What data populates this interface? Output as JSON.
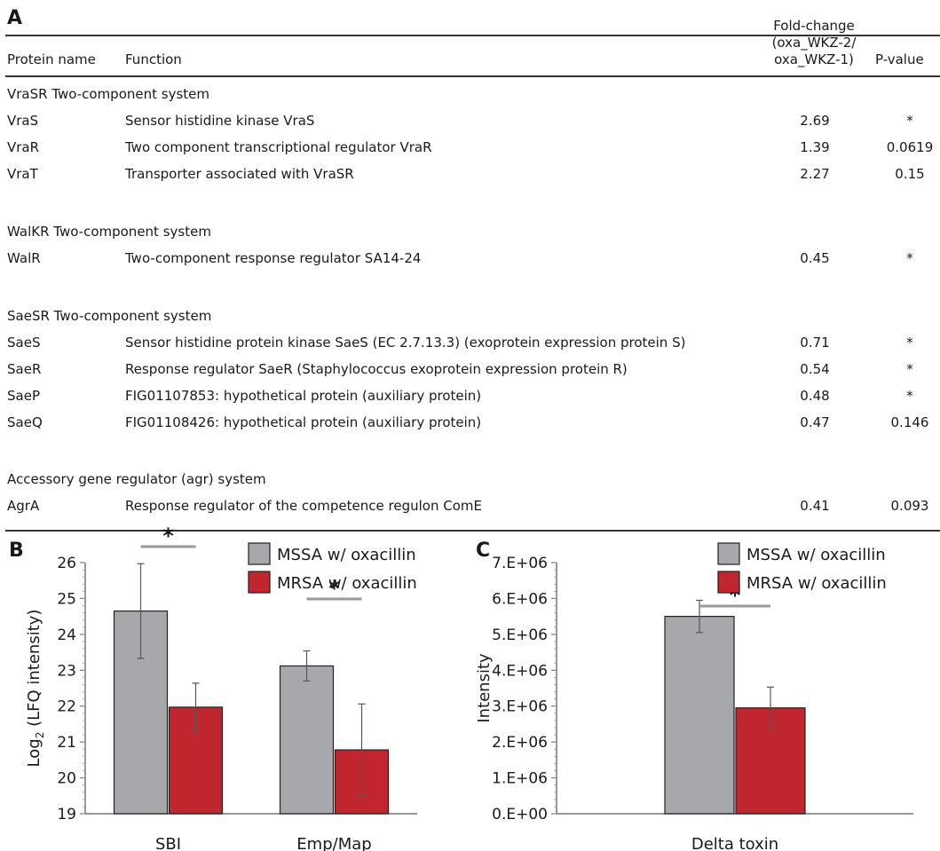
{
  "panels": {
    "a_label": "A",
    "b_label": "B",
    "c_label": "C"
  },
  "table": {
    "headers": {
      "protein": "Protein name",
      "function": "Function",
      "fold_line1": "Fold-change",
      "fold_line2": "(oxa_WKZ-2/",
      "fold_line3": "oxa_WKZ-1)",
      "pvalue": "P-value"
    },
    "groups": [
      {
        "title": "VraSR Two-component system",
        "rows": [
          {
            "protein": "VraS",
            "function": "Sensor histidine kinase VraS",
            "fold": "2.69",
            "p": "*"
          },
          {
            "protein": "VraR",
            "function": "Two component transcriptional regulator VraR",
            "fold": "1.39",
            "p": "0.0619"
          },
          {
            "protein": "VraT",
            "function": "Transporter associated with VraSR",
            "fold": "2.27",
            "p": "0.15"
          }
        ]
      },
      {
        "title": "WalKR Two-component system",
        "rows": [
          {
            "protein": "WalR",
            "function": "Two-component response regulator SA14-24",
            "fold": "0.45",
            "p": "*"
          }
        ]
      },
      {
        "title": "SaeSR Two-component system",
        "rows": [
          {
            "protein": "SaeS",
            "function": "Sensor histidine protein kinase SaeS (EC 2.7.13.3) (exoprotein expression protein S)",
            "fold": "0.71",
            "p": "*"
          },
          {
            "protein": "SaeR",
            "function": "Response regulator SaeR (Staphylococcus exoprotein expression protein R)",
            "fold": "0.54",
            "p": "*"
          },
          {
            "protein": "SaeP",
            "function": "FIG01107853: hypothetical protein (auxiliary protein)",
            "fold": "0.48",
            "p": "*"
          },
          {
            "protein": "SaeQ",
            "function": "FIG01108426: hypothetical protein (auxiliary protein)",
            "fold": "0.47",
            "p": "0.146"
          }
        ]
      },
      {
        "title": "Accessory gene regulator (agr)  system",
        "rows": [
          {
            "protein": "AgrA",
            "function": "Response regulator of the competence regulon ComE",
            "fold": "0.41",
            "p": "0.093"
          }
        ]
      }
    ]
  },
  "chart_data": [
    {
      "type": "bar",
      "panel": "B",
      "categories": [
        "SBI",
        "Emp/Map"
      ],
      "series": [
        {
          "name": "MSSA w/ oxacillin",
          "color": "#a6a8ab",
          "values": [
            24.65,
            23.12
          ],
          "errors": [
            1.32,
            0.42
          ]
        },
        {
          "name": "MRSA w/ oxacillin",
          "color": "#c0262d",
          "values": [
            21.97,
            20.78
          ],
          "errors": [
            0.67,
            1.28
          ]
        }
      ],
      "ylabel_base": "Log",
      "ylabel_sub": "2",
      "ylabel_rest": " (LFQ intensity)",
      "ylim": [
        19,
        26
      ],
      "yticks": [
        "19",
        "20",
        "21",
        "22",
        "23",
        "24",
        "25",
        "26"
      ],
      "significance": [
        {
          "category_index": 0,
          "mark": "*"
        },
        {
          "category_index": 1,
          "mark": "*"
        }
      ],
      "legend_position": "top-right",
      "grid": false
    },
    {
      "type": "bar",
      "panel": "C",
      "categories": [
        "Delta toxin"
      ],
      "series": [
        {
          "name": "MSSA w/ oxacillin",
          "color": "#a6a8ab",
          "values": [
            5500000
          ],
          "errors": [
            450000
          ]
        },
        {
          "name": "MRSA w/ oxacillin",
          "color": "#c0262d",
          "values": [
            2950000
          ],
          "errors": [
            580000
          ]
        }
      ],
      "ylabel": "Intensity",
      "ylim": [
        0,
        7000000
      ],
      "yticks": [
        "0.E+00",
        "1.E+06",
        "2.E+06",
        "3.E+06",
        "4.E+06",
        "5.E+06",
        "6.E+06",
        "7.E+06"
      ],
      "significance": [
        {
          "category_index": 0,
          "mark": "*"
        }
      ],
      "legend_position": "top-right",
      "grid": false
    }
  ]
}
